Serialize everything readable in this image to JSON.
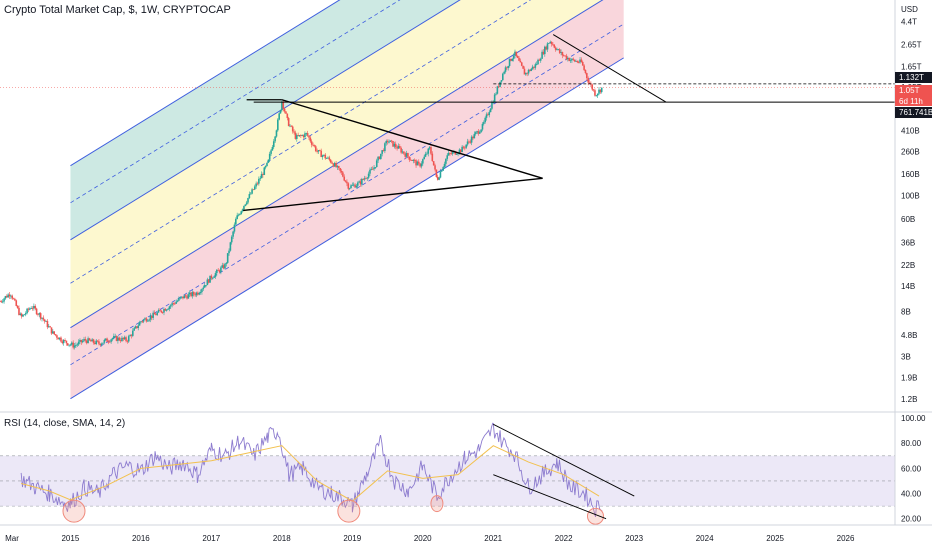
{
  "header": {
    "title": "Crypto Total Market Cap, $, 1W, CRYPTOCAP"
  },
  "rsi": {
    "title": "RSI (14, close, SMA, 14, 2)"
  },
  "price_tags": {
    "current": "1.132T",
    "last": "1.05T",
    "countdown": "6d 11h",
    "support": "761.741B"
  },
  "colors": {
    "candle_up": "#26a69a",
    "candle_down": "#ef5350",
    "channel_line": "#3f5fdf",
    "band_green": "#cde9e3",
    "band_yellow": "#fdf8cf",
    "band_red": "#f9d6dc",
    "rsi_line": "#8d7ccf",
    "rsi_ma": "#f2c14f",
    "rsi_band": "#ece8f7",
    "circle": "#f08a7c"
  },
  "chart_data": [
    {
      "type": "candlestick",
      "title": "Crypto Total Market Cap, $, 1W, CRYPTOCAP",
      "scale": "log",
      "y_unit": "USD",
      "ylim": [
        900000000,
        7000000000000
      ],
      "xlim": [
        2014.0,
        2026.7
      ],
      "y_ticks": [
        "USD",
        "4.4T",
        "2.65T",
        "1.65T",
        "1.05T",
        "410B",
        "260B",
        "160B",
        "100B",
        "60B",
        "36B",
        "22B",
        "14B",
        "8B",
        "4.8B",
        "3B",
        "1.9B",
        "1.2B"
      ],
      "y_tick_values": [
        null,
        4400000000000.0,
        2650000000000.0,
        1650000000000.0,
        1050000000000.0,
        410000000000.0,
        260000000000.0,
        160000000000.0,
        100000000000.0,
        60000000000.0,
        36000000000.0,
        22000000000.0,
        14000000000.0,
        8000000000.0,
        4800000000.0,
        3000000000.0,
        1900000000.0,
        1200000000.0
      ],
      "x_ticks": [
        "Mar",
        "2015",
        "2016",
        "2017",
        "2018",
        "2019",
        "2020",
        "2021",
        "2022",
        "2023",
        "2024",
        "2025",
        "2026"
      ],
      "x_tick_values": [
        2014.2,
        2015.0,
        2016.0,
        2017.0,
        2018.0,
        2019.0,
        2020.0,
        2021.0,
        2022.0,
        2023.0,
        2024.0,
        2025.0,
        2026.0
      ],
      "price_path": [
        [
          2014.0,
          10000000000
        ],
        [
          2014.15,
          12000000000
        ],
        [
          2014.3,
          7000000000
        ],
        [
          2014.45,
          9000000000
        ],
        [
          2014.6,
          7000000000
        ],
        [
          2014.75,
          5000000000
        ],
        [
          2014.9,
          4200000000
        ],
        [
          2015.05,
          3800000000
        ],
        [
          2015.2,
          4300000000
        ],
        [
          2015.4,
          4000000000
        ],
        [
          2015.6,
          4500000000
        ],
        [
          2015.8,
          4300000000
        ],
        [
          2016.0,
          6500000000
        ],
        [
          2016.2,
          7500000000
        ],
        [
          2016.4,
          9000000000
        ],
        [
          2016.6,
          11000000000
        ],
        [
          2016.8,
          12000000000
        ],
        [
          2017.0,
          17000000000
        ],
        [
          2017.2,
          22000000000
        ],
        [
          2017.35,
          60000000000
        ],
        [
          2017.5,
          90000000000
        ],
        [
          2017.65,
          130000000000
        ],
        [
          2017.8,
          200000000000
        ],
        [
          2017.93,
          450000000000
        ],
        [
          2018.0,
          780000000000
        ],
        [
          2018.08,
          500000000000
        ],
        [
          2018.2,
          350000000000
        ],
        [
          2018.35,
          380000000000
        ],
        [
          2018.5,
          260000000000
        ],
        [
          2018.7,
          210000000000
        ],
        [
          2018.85,
          160000000000
        ],
        [
          2018.95,
          120000000000
        ],
        [
          2019.1,
          130000000000
        ],
        [
          2019.3,
          180000000000
        ],
        [
          2019.5,
          330000000000
        ],
        [
          2019.65,
          280000000000
        ],
        [
          2019.8,
          230000000000
        ],
        [
          2019.95,
          190000000000
        ],
        [
          2020.1,
          280000000000
        ],
        [
          2020.2,
          140000000000
        ],
        [
          2020.35,
          240000000000
        ],
        [
          2020.55,
          270000000000
        ],
        [
          2020.7,
          350000000000
        ],
        [
          2020.85,
          450000000000
        ],
        [
          2021.0,
          800000000000
        ],
        [
          2021.15,
          1500000000000
        ],
        [
          2021.3,
          2200000000000
        ],
        [
          2021.45,
          1400000000000
        ],
        [
          2021.6,
          1700000000000
        ],
        [
          2021.8,
          2900000000000
        ],
        [
          2021.95,
          2200000000000
        ],
        [
          2022.1,
          1900000000000
        ],
        [
          2022.25,
          1800000000000
        ],
        [
          2022.35,
          1200000000000
        ],
        [
          2022.45,
          900000000000
        ],
        [
          2022.55,
          1050000000000
        ]
      ],
      "annotations": {
        "horizontal_support": "761.741B",
        "horizontal_resistance": "1.132T"
      }
    },
    {
      "type": "line",
      "title": "RSI (14, close, SMA, 14, 2)",
      "ylim": [
        15,
        100
      ],
      "y_ticks": [
        100.0,
        80.0,
        60.0,
        40.0,
        20.0
      ],
      "bands": [
        30,
        50,
        70
      ],
      "series": [
        {
          "values_x": [
            2014.3,
            2014.5,
            2014.7,
            2014.9,
            2015.0,
            2015.2,
            2015.4,
            2015.6,
            2015.8,
            2016.0,
            2016.2,
            2016.4,
            2016.6,
            2016.8,
            2017.0,
            2017.2,
            2017.4,
            2017.6,
            2017.8,
            2017.95,
            2018.1,
            2018.3,
            2018.5,
            2018.7,
            2018.9,
            2019.0,
            2019.2,
            2019.4,
            2019.6,
            2019.8,
            2020.0,
            2020.2,
            2020.4,
            2020.6,
            2020.8,
            2021.0,
            2021.15,
            2021.3,
            2021.5,
            2021.7,
            2021.9,
            2022.1,
            2022.3,
            2022.45,
            2022.55
          ],
          "values": [
            52,
            45,
            40,
            33,
            32,
            45,
            40,
            55,
            62,
            58,
            70,
            60,
            65,
            55,
            75,
            70,
            82,
            70,
            85,
            90,
            55,
            60,
            45,
            40,
            35,
            30,
            55,
            80,
            50,
            42,
            62,
            38,
            55,
            68,
            75,
            92,
            80,
            72,
            45,
            55,
            65,
            45,
            40,
            28,
            33
          ]
        },
        {
          "values_x": [
            2014.3,
            2014.7,
            2015.0,
            2015.5,
            2016.0,
            2016.5,
            2017.0,
            2017.5,
            2018.0,
            2018.5,
            2019.0,
            2019.5,
            2020.0,
            2020.5,
            2021.0,
            2021.5,
            2022.0,
            2022.5
          ],
          "values": [
            48,
            42,
            35,
            46,
            60,
            63,
            66,
            72,
            78,
            50,
            34,
            58,
            52,
            55,
            78,
            65,
            55,
            38
          ]
        }
      ],
      "circled_lows": [
        "2015",
        "2019",
        "2020",
        "2022"
      ]
    }
  ]
}
